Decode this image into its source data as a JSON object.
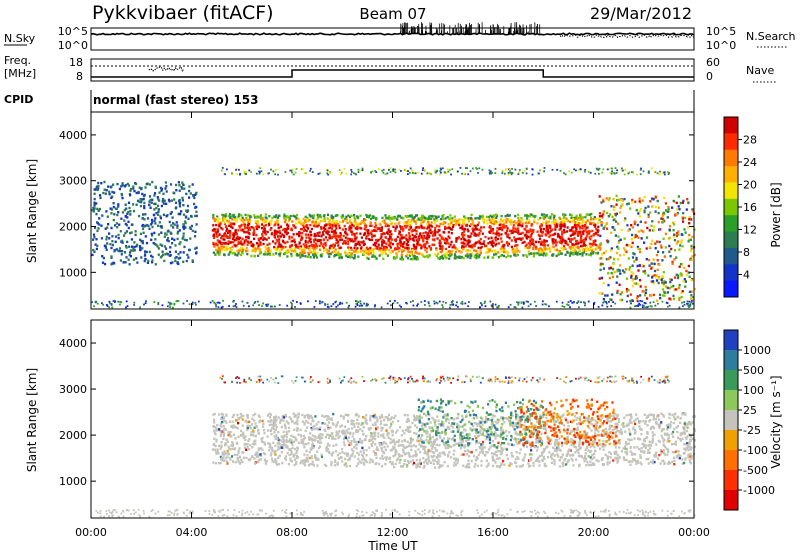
{
  "header": {
    "station": "Pykkvibaer (fitACF)",
    "beam": "Beam 07",
    "date": "29/Mar/2012"
  },
  "noise_panel": {
    "left_label": "N.Sky",
    "left_ticks": [
      "10^5",
      "10^0"
    ],
    "right_label": "N.Search",
    "right_ticks": [
      "10^5",
      "10^0"
    ]
  },
  "freq_panel": {
    "left_label_1": "Freq.",
    "left_label_2": "[MHz]",
    "left_ticks": [
      "18",
      "8"
    ],
    "right_label": "Nave",
    "right_ticks": [
      "60",
      "0"
    ]
  },
  "cpid": {
    "label": "CPID",
    "value": "normal (fast stereo) 153"
  },
  "chart_data": [
    {
      "type": "heatmap",
      "name": "power",
      "ylabel": "Slant Range [km]",
      "yticks": [
        "4000",
        "3000",
        "2000",
        "1000"
      ],
      "ylim": [
        200,
        4500
      ],
      "xlim_hours": [
        0,
        24
      ],
      "colorbar": {
        "label": "Power [dB]",
        "ticks": [
          "28",
          "24",
          "20",
          "16",
          "12",
          "8",
          "4"
        ],
        "colors": [
          "#d00000",
          "#ff2a00",
          "#ff7a00",
          "#ffb000",
          "#f2e600",
          "#7bc800",
          "#2aa02a",
          "#2e7d50",
          "#1f5a8a",
          "#1433c8",
          "#0a18ff"
        ]
      },
      "features": [
        {
          "region": "main echo band",
          "t_start_h": 4.8,
          "t_end_h": 20.2,
          "range_km": [
            1300,
            2300
          ],
          "power_db": [
            20,
            30
          ]
        },
        {
          "region": "early scatter",
          "t_start_h": 0.0,
          "t_end_h": 4.2,
          "range_km": [
            1200,
            3000
          ],
          "power_db": [
            4,
            12
          ]
        },
        {
          "region": "late irregular",
          "t_start_h": 20.2,
          "t_end_h": 24.0,
          "range_km": [
            400,
            2700
          ],
          "power_db": [
            8,
            28
          ]
        }
      ]
    },
    {
      "type": "heatmap",
      "name": "velocity",
      "ylabel": "Slant Range [km]",
      "yticks": [
        "4000",
        "3000",
        "2000",
        "1000"
      ],
      "ylim": [
        200,
        4500
      ],
      "xlim_hours": [
        0,
        24
      ],
      "colorbar": {
        "label": "Velocity [m s⁻¹]",
        "ticks": [
          "1000",
          "500",
          "100",
          "25",
          "-25",
          "-100",
          "-500",
          "-1000"
        ],
        "colors": [
          "#2040c0",
          "#2e7d9a",
          "#3a9a5a",
          "#8cc85a",
          "#c4c4bc",
          "#f0a000",
          "#ff7000",
          "#ff3000",
          "#e00000"
        ]
      },
      "features": [
        {
          "region": "ground scatter band",
          "t_start_h": 4.8,
          "t_end_h": 24.0,
          "range_km": [
            1300,
            2500
          ],
          "velocity_ms": [
            -25,
            25
          ]
        },
        {
          "region": "positive velocity patches",
          "t_start_h": 13.0,
          "t_end_h": 18.0,
          "range_km": [
            1800,
            2800
          ],
          "velocity_ms": [
            100,
            500
          ]
        },
        {
          "region": "negative velocity patches",
          "t_start_h": 17.0,
          "t_end_h": 21.0,
          "range_km": [
            1800,
            2800
          ],
          "velocity_ms": [
            -500,
            -100
          ]
        }
      ]
    }
  ],
  "xaxis": {
    "ticks": [
      "00:00",
      "04:00",
      "08:00",
      "12:00",
      "16:00",
      "20:00",
      "00:00"
    ],
    "label": "Time UT"
  },
  "colors": {
    "frame": "#000000",
    "ground_scatter": "#c4c4bc"
  }
}
